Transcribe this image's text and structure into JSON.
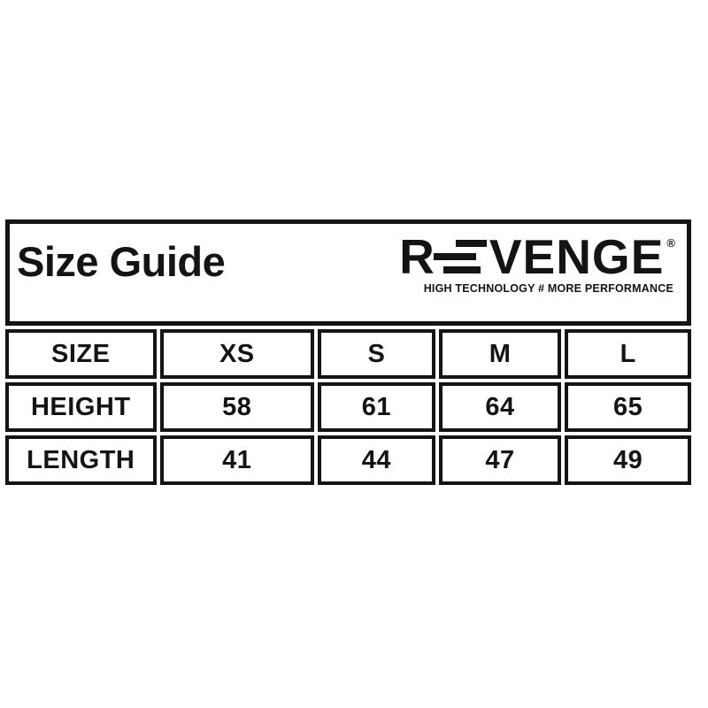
{
  "brand": {
    "prefix": "R",
    "suffix": "VENGE",
    "registered": "®",
    "tagline": "HIGH TECHNOLOGY # MORE PERFORMANCE",
    "tribar_icon": "three-horizontal-bars-e"
  },
  "colors": {
    "background": "#ffffff",
    "ink": "#141414"
  },
  "chart_data": {
    "type": "table",
    "title": "Size Guide",
    "columns": [
      "SIZE",
      "XS",
      "S",
      "M",
      "L"
    ],
    "rows": [
      {
        "label": "HEIGHT",
        "values": [
          "58",
          "61",
          "64",
          "65"
        ]
      },
      {
        "label": "LENGTH",
        "values": [
          "41",
          "44",
          "47",
          "49"
        ]
      }
    ]
  }
}
